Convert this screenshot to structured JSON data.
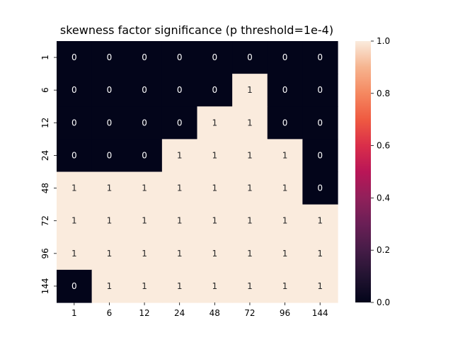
{
  "chart_data": {
    "type": "heatmap",
    "title": "skewness factor significance (p threshold=1e-4)",
    "xlabel": "",
    "ylabel": "",
    "x_categories": [
      "1",
      "6",
      "12",
      "24",
      "48",
      "72",
      "96",
      "144"
    ],
    "y_categories": [
      "1",
      "6",
      "12",
      "24",
      "48",
      "72",
      "96",
      "144"
    ],
    "values": [
      [
        0,
        0,
        0,
        0,
        0,
        0,
        0,
        0
      ],
      [
        0,
        0,
        0,
        0,
        0,
        1,
        0,
        0
      ],
      [
        0,
        0,
        0,
        0,
        1,
        1,
        0,
        0
      ],
      [
        0,
        0,
        0,
        1,
        1,
        1,
        1,
        0
      ],
      [
        1,
        1,
        1,
        1,
        1,
        1,
        1,
        0
      ],
      [
        1,
        1,
        1,
        1,
        1,
        1,
        1,
        1
      ],
      [
        1,
        1,
        1,
        1,
        1,
        1,
        1,
        1
      ],
      [
        0,
        1,
        1,
        1,
        1,
        1,
        1,
        1
      ]
    ],
    "annotations": [
      [
        "0",
        "0",
        "0",
        "0",
        "0",
        "0",
        "0",
        "0"
      ],
      [
        "0",
        "0",
        "0",
        "0",
        "0",
        "1",
        "0",
        "0"
      ],
      [
        "0",
        "0",
        "0",
        "0",
        "1",
        "1",
        "0",
        "0"
      ],
      [
        "0",
        "0",
        "0",
        "1",
        "1",
        "1",
        "1",
        "0"
      ],
      [
        "1",
        "1",
        "1",
        "1",
        "1",
        "1",
        "1",
        "0"
      ],
      [
        "1",
        "1",
        "1",
        "1",
        "1",
        "1",
        "1",
        "1"
      ],
      [
        "1",
        "1",
        "1",
        "1",
        "1",
        "1",
        "1",
        "1"
      ],
      [
        "0",
        "1",
        "1",
        "1",
        "1",
        "1",
        "1",
        "1"
      ]
    ],
    "colorbar": {
      "range": [
        0.0,
        1.0
      ],
      "ticks": [
        "0.0",
        "0.2",
        "0.4",
        "0.6",
        "0.8",
        "1.0"
      ],
      "colormap": "rocket"
    },
    "colors": {
      "low": "#03051a",
      "high": "#faebdd",
      "text_on_low": "#ffffff",
      "text_on_high": "#262626"
    },
    "grid": false,
    "legend": "colorbar-right"
  }
}
